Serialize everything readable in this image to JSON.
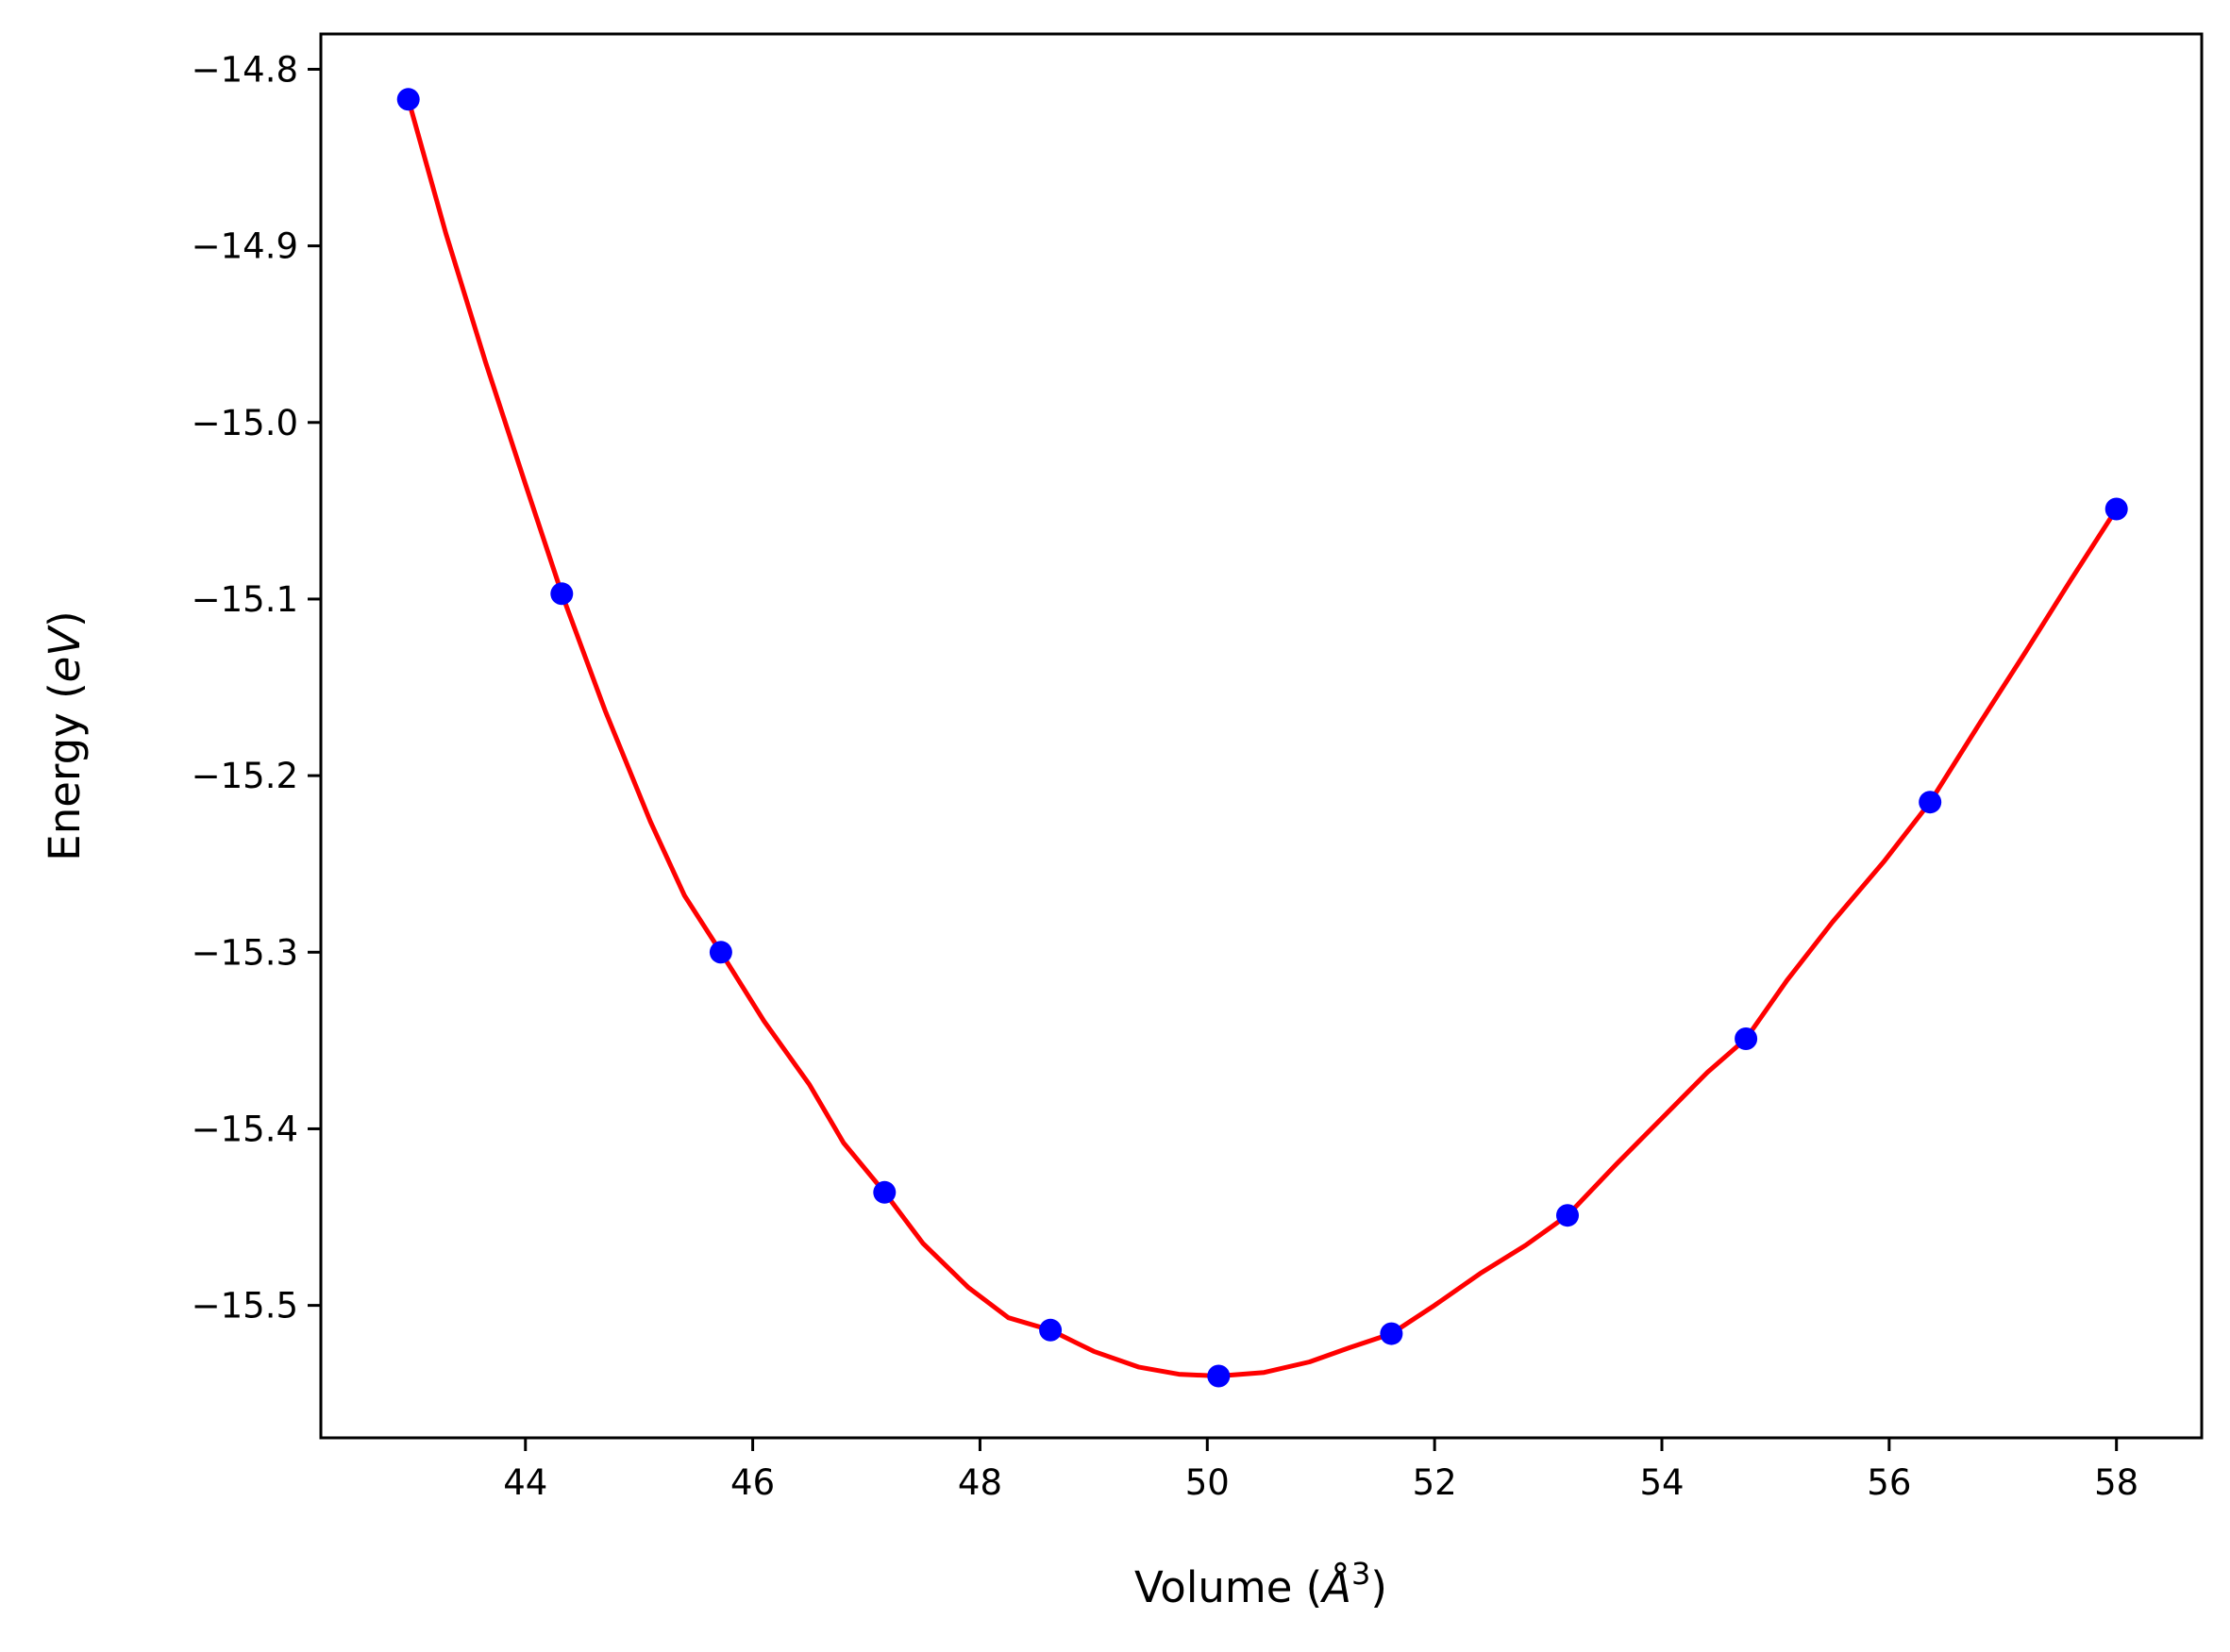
{
  "chart_data": {
    "type": "line",
    "xlabel": {
      "prefix": "Volume (",
      "symbol": "Å",
      "superscript": "3",
      "suffix": ")"
    },
    "ylabel": {
      "prefix": "Energy (",
      "symbol": "eV",
      "suffix": ")"
    },
    "xlim": [
      42.2,
      58.75
    ],
    "ylim": [
      -15.575,
      -14.78
    ],
    "x_ticks": [
      44,
      46,
      48,
      50,
      52,
      54,
      56,
      58
    ],
    "x_tick_labels": [
      "44",
      "46",
      "48",
      "50",
      "52",
      "54",
      "56",
      "58"
    ],
    "y_ticks": [
      -14.8,
      -14.9,
      -15.0,
      -15.1,
      -15.2,
      -15.3,
      -15.4,
      -15.5
    ],
    "y_tick_labels": [
      "−14.8",
      "−14.9",
      "−15.0",
      "−15.1",
      "−15.2",
      "−15.3",
      "−15.4",
      "−15.5"
    ],
    "grid": false,
    "series": [
      {
        "style": "markers",
        "color": "#0000ff",
        "x": [
          42.97,
          44.32,
          45.72,
          47.16,
          48.62,
          50.1,
          51.62,
          53.17,
          54.74,
          56.36,
          58.0
        ],
        "y": [
          -14.817,
          -15.097,
          -15.3,
          -15.436,
          -15.514,
          -15.54,
          -15.516,
          -15.449,
          -15.349,
          -15.215,
          -15.049
        ]
      },
      {
        "style": "line",
        "color": "#ff0000",
        "x": [
          42.97,
          43.3,
          43.65,
          44.0,
          44.32,
          44.7,
          45.1,
          45.4,
          45.72,
          46.1,
          46.5,
          46.8,
          47.16,
          47.5,
          47.9,
          48.25,
          48.62,
          49.0,
          49.4,
          49.75,
          50.1,
          50.5,
          50.9,
          51.25,
          51.62,
          52.0,
          52.4,
          52.8,
          53.17,
          53.6,
          54.0,
          54.4,
          54.74,
          55.1,
          55.5,
          55.95,
          56.36,
          56.8,
          57.2,
          57.6,
          58.0
        ],
        "y": [
          -14.817,
          -14.893,
          -14.966,
          -15.035,
          -15.097,
          -15.163,
          -15.226,
          -15.268,
          -15.3,
          -15.339,
          -15.375,
          -15.408,
          -15.436,
          -15.465,
          -15.49,
          -15.507,
          -15.514,
          -15.526,
          -15.535,
          -15.539,
          -15.54,
          -15.538,
          -15.532,
          -15.524,
          -15.516,
          -15.5,
          -15.482,
          -15.466,
          -15.449,
          -15.42,
          -15.394,
          -15.368,
          -15.349,
          -15.316,
          -15.283,
          -15.249,
          -15.215,
          -15.17,
          -15.13,
          -15.089,
          -15.049
        ]
      }
    ]
  }
}
